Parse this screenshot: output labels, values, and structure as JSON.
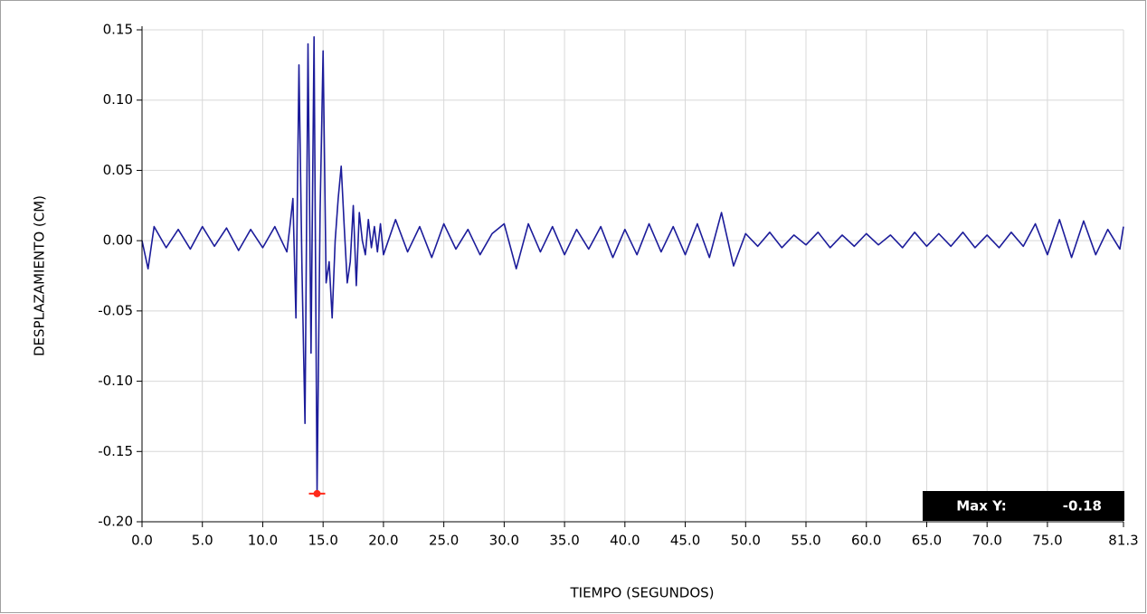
{
  "chart_data": {
    "type": "line",
    "xlabel": "TIEMPO (SEGUNDOS)",
    "ylabel": "DESPLAZAMIENTO (CM)",
    "xlim": [
      0,
      81.3
    ],
    "ylim": [
      -0.2,
      0.15
    ],
    "grid": true,
    "xticks": [
      {
        "value": 0,
        "label": "0.0"
      },
      {
        "value": 5,
        "label": "5.0"
      },
      {
        "value": 10,
        "label": "10.0"
      },
      {
        "value": 15,
        "label": "15.0"
      },
      {
        "value": 20,
        "label": "20.0"
      },
      {
        "value": 25,
        "label": "25.0"
      },
      {
        "value": 30,
        "label": "30.0"
      },
      {
        "value": 35,
        "label": "35.0"
      },
      {
        "value": 40,
        "label": "40.0"
      },
      {
        "value": 45,
        "label": "45.0"
      },
      {
        "value": 50,
        "label": "50.0"
      },
      {
        "value": 55,
        "label": "55.0"
      },
      {
        "value": 60,
        "label": "60.0"
      },
      {
        "value": 65,
        "label": "65.0"
      },
      {
        "value": 70,
        "label": "70.0"
      },
      {
        "value": 75,
        "label": "75.0"
      },
      {
        "value": 81.3,
        "label": "81.3"
      }
    ],
    "yticks": [
      {
        "value": 0.15,
        "label": "0.15"
      },
      {
        "value": 0.1,
        "label": "0.10"
      },
      {
        "value": 0.05,
        "label": "0.05"
      },
      {
        "value": 0,
        "label": "0.00"
      },
      {
        "value": -0.05,
        "label": "-0.05"
      },
      {
        "value": -0.1,
        "label": "-0.10"
      },
      {
        "value": -0.15,
        "label": "-0.15"
      },
      {
        "value": -0.2,
        "label": "-0.20"
      }
    ],
    "x": [
      0,
      0.5,
      1,
      2,
      3,
      4,
      5,
      6,
      7,
      8,
      9,
      10,
      11,
      12,
      12.25,
      12.5,
      12.75,
      13,
      13.25,
      13.5,
      13.75,
      14,
      14.25,
      14.5,
      14.75,
      15,
      15.25,
      15.5,
      15.75,
      16,
      16.25,
      16.5,
      16.75,
      17,
      17.25,
      17.5,
      17.75,
      18,
      18.25,
      18.5,
      18.75,
      19,
      19.25,
      19.5,
      19.75,
      20,
      21,
      22,
      23,
      24,
      25,
      26,
      27,
      28,
      29,
      30,
      31,
      32,
      33,
      34,
      35,
      36,
      37,
      38,
      39,
      40,
      41,
      42,
      43,
      44,
      45,
      46,
      47,
      48,
      49,
      50,
      51,
      52,
      53,
      54,
      55,
      56,
      57,
      58,
      59,
      60,
      61,
      62,
      63,
      64,
      65,
      66,
      67,
      68,
      69,
      70,
      71,
      72,
      73,
      74,
      75,
      76,
      77,
      78,
      79,
      80,
      81,
      81.3
    ],
    "series": [
      {
        "color": "#1c1c9a",
        "values": [
          0.0,
          -0.02,
          0.01,
          -0.005,
          0.008,
          -0.006,
          0.01,
          -0.004,
          0.009,
          -0.007,
          0.008,
          -0.005,
          0.01,
          -0.008,
          0.01,
          0.03,
          -0.055,
          0.125,
          -0.02,
          -0.13,
          0.14,
          -0.08,
          0.145,
          -0.18,
          0.02,
          0.135,
          -0.03,
          -0.015,
          -0.055,
          0.0,
          0.03,
          0.053,
          0.01,
          -0.03,
          -0.015,
          0.025,
          -0.032,
          0.02,
          0.0,
          -0.01,
          0.015,
          -0.005,
          0.01,
          -0.008,
          0.012,
          -0.01,
          0.015,
          -0.008,
          0.01,
          -0.012,
          0.012,
          -0.006,
          0.008,
          -0.01,
          0.005,
          0.012,
          -0.02,
          0.012,
          -0.008,
          0.01,
          -0.01,
          0.008,
          -0.006,
          0.01,
          -0.012,
          0.008,
          -0.01,
          0.012,
          -0.008,
          0.01,
          -0.01,
          0.012,
          -0.012,
          0.02,
          -0.018,
          0.005,
          -0.004,
          0.006,
          -0.005,
          0.004,
          -0.003,
          0.006,
          -0.005,
          0.004,
          -0.004,
          0.005,
          -0.003,
          0.004,
          -0.005,
          0.006,
          -0.004,
          0.005,
          -0.004,
          0.006,
          -0.005,
          0.004,
          -0.005,
          0.006,
          -0.004,
          0.012,
          -0.01,
          0.015,
          -0.012,
          0.014,
          -0.01,
          0.008,
          -0.006,
          0.01
        ]
      }
    ],
    "annotation": {
      "label": "Max Y:",
      "x": 14.5,
      "value": -0.18,
      "color": "#ff2a1a"
    }
  }
}
